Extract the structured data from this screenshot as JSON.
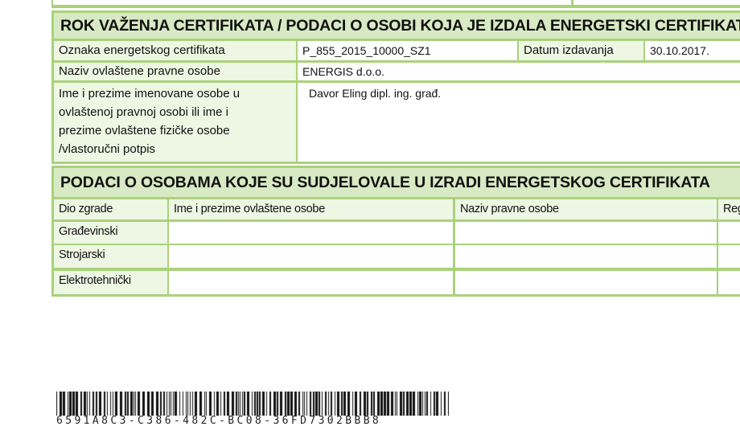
{
  "issuer_section": {
    "title": "ROK VAŽENJA CERTIFIKATA / PODACI O OSOBI KOJA JE IZDALA ENERGETSKI CERTIFIKAT",
    "rows": [
      {
        "label": "Oznaka energetskog certifikata",
        "value": "P_855_2015_10000_SZ1",
        "extra_label": "Datum izdavanja",
        "extra_value": "30.10.2017."
      },
      {
        "label": "Naziv ovlaštene pravne osobe",
        "value": "ENERGIS d.o.o."
      },
      {
        "label": "Ime i prezime imenovane osobe u ovlaštenoj pravnoj osobi ili ime i prezime ovlaštene fizičke osobe /vlastoručni potpis",
        "value": "Davor Eling dipl. ing. građ."
      }
    ]
  },
  "participants_section": {
    "title": "PODACI O OSOBAMA KOJE SU SUDJELOVALE U IZRADI ENERGETSKOG CERTIFIKATA",
    "columns": [
      "Dio zgrade",
      "Ime i prezime ovlaštene osobe",
      "Naziv pravne osobe",
      "Reg"
    ],
    "rows": [
      [
        "Građevinski",
        "",
        "",
        ""
      ],
      [
        "Strojarski",
        "",
        "",
        ""
      ],
      [
        "Elektrotehnički",
        "",
        "",
        ""
      ]
    ]
  },
  "barcode": {
    "text": "6591A8C3-C386-482C-BC08-36FD7302BBB8"
  },
  "colors": {
    "border": "#a9d27a",
    "header_bg": "#d8eac4",
    "label_bg": "#eef6e4"
  }
}
